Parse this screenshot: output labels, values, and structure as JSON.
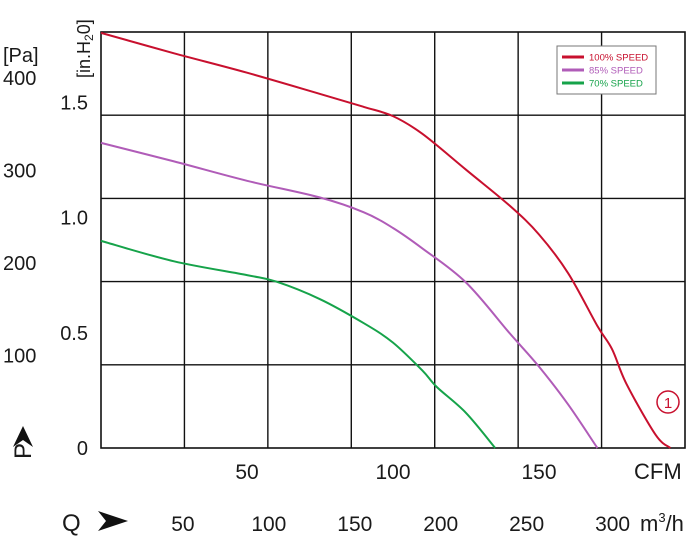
{
  "chart_data": {
    "type": "line",
    "pa_unit": "[Pa]",
    "inh2o_unit": "[in.H",
    "inh2o_sub": "2",
    "inh2o_close": "0]",
    "p_label": "P",
    "q_label": "Q",
    "cfm_unit": "CFM",
    "m3h_unit": "m",
    "m3h_sup": "3",
    "m3h_tail": "/h",
    "pa_ticks": [
      "400",
      "300",
      "200",
      "100"
    ],
    "pa_tick_values": [
      400,
      300,
      200,
      100
    ],
    "inh2o_ticks": [
      "1.5",
      "1.0",
      "0.5",
      "0"
    ],
    "inh2o_tick_values": [
      1.5,
      1.0,
      0.5,
      0
    ],
    "cfm_ticks": [
      "50",
      "100",
      "150"
    ],
    "cfm_tick_values": [
      50,
      100,
      150
    ],
    "m3h_ticks": [
      "50",
      "100",
      "150",
      "200",
      "250",
      "300"
    ],
    "m3h_tick_values": [
      50,
      100,
      150,
      200,
      250,
      300
    ],
    "xlim_cfm": [
      0,
      200
    ],
    "ylim_pa": [
      0,
      450
    ],
    "grid": true,
    "legend_position": "top-right",
    "curve_marker": "1",
    "series": [
      {
        "name": "100% SPEED",
        "color": "#c8102e",
        "points": [
          [
            0,
            449
          ],
          [
            25,
            427
          ],
          [
            50,
            406
          ],
          [
            75,
            383
          ],
          [
            90,
            369
          ],
          [
            100,
            359
          ],
          [
            110,
            340
          ],
          [
            125,
            301
          ],
          [
            140,
            262
          ],
          [
            150,
            231
          ],
          [
            160,
            189
          ],
          [
            170,
            132
          ],
          [
            175,
            107
          ],
          [
            180,
            69
          ],
          [
            190,
            14
          ],
          [
            195,
            0
          ]
        ]
      },
      {
        "name": "85% SPEED",
        "color": "#b05cb8",
        "points": [
          [
            0,
            330
          ],
          [
            25,
            310
          ],
          [
            50,
            289
          ],
          [
            75,
            271
          ],
          [
            90,
            255
          ],
          [
            100,
            238
          ],
          [
            110,
            216
          ],
          [
            125,
            179
          ],
          [
            140,
            124
          ],
          [
            150,
            88
          ],
          [
            160,
            47
          ],
          [
            170,
            0
          ]
        ]
      },
      {
        "name": "70% SPEED",
        "color": "#16a34a",
        "points": [
          [
            0,
            224
          ],
          [
            25,
            202
          ],
          [
            50,
            187
          ],
          [
            60,
            180
          ],
          [
            75,
            161
          ],
          [
            90,
            135
          ],
          [
            100,
            114
          ],
          [
            110,
            84
          ],
          [
            115,
            66
          ],
          [
            125,
            38
          ],
          [
            135,
            0
          ]
        ]
      }
    ]
  }
}
